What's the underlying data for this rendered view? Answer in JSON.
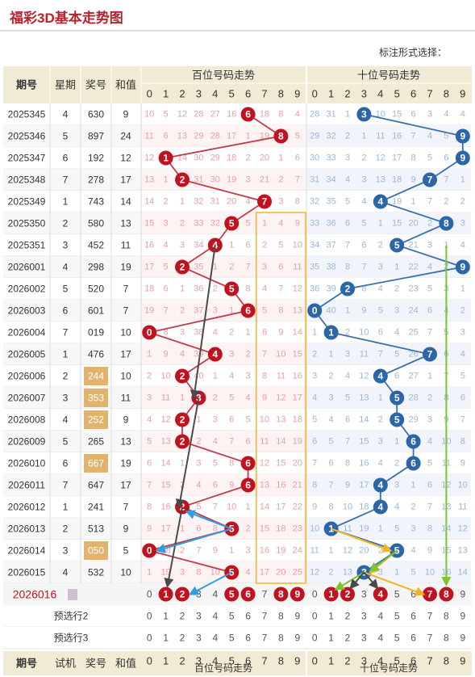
{
  "title": "福彩3D基本走势图",
  "mark_style_label": "标注形式选择：",
  "header": {
    "period": "期号",
    "weekday": "星期",
    "prize": "奖号",
    "sum": "和值",
    "hundreds_group": "百位号码走势",
    "tens_group": "十位号码走势",
    "digits": [
      "0",
      "1",
      "2",
      "3",
      "4",
      "5",
      "6",
      "7",
      "8",
      "9"
    ]
  },
  "footer_header": {
    "period": "期号",
    "trial": "试机",
    "prize": "奖号",
    "sum": "和值",
    "hundreds_group": "百位号码走势",
    "tens_group": "十位号码走势"
  },
  "rows": [
    {
      "period": "2025345",
      "weekday": "4",
      "prize": "630",
      "sum": "9",
      "prize_marked": false,
      "h": [
        "10",
        "5",
        "12",
        "28",
        "27",
        "16",
        "6",
        "18",
        "8",
        "4"
      ],
      "t": [
        "28",
        "31",
        "1",
        "3",
        "10",
        "15",
        "6",
        "3",
        "4",
        "4"
      ]
    },
    {
      "period": "2025346",
      "weekday": "5",
      "prize": "897",
      "sum": "24",
      "prize_marked": false,
      "h": [
        "11",
        "6",
        "13",
        "29",
        "28",
        "17",
        "1",
        "19",
        "8",
        "5"
      ],
      "t": [
        "29",
        "32",
        "2",
        "1",
        "11",
        "16",
        "7",
        "4",
        "5",
        "9"
      ]
    },
    {
      "period": "2025347",
      "weekday": "6",
      "prize": "192",
      "sum": "12",
      "prize_marked": false,
      "h": [
        "12",
        "1",
        "14",
        "30",
        "29",
        "18",
        "2",
        "20",
        "1",
        "6"
      ],
      "t": [
        "30",
        "33",
        "3",
        "2",
        "12",
        "17",
        "8",
        "5",
        "6",
        "9"
      ]
    },
    {
      "period": "2025348",
      "weekday": "7",
      "prize": "278",
      "sum": "17",
      "prize_marked": false,
      "h": [
        "13",
        "1",
        "2",
        "31",
        "30",
        "19",
        "3",
        "21",
        "2",
        "7"
      ],
      "t": [
        "31",
        "34",
        "4",
        "3",
        "13",
        "18",
        "9",
        "7",
        "7",
        "1"
      ]
    },
    {
      "period": "2025349",
      "weekday": "1",
      "prize": "743",
      "sum": "14",
      "prize_marked": false,
      "h": [
        "14",
        "2",
        "1",
        "32",
        "31",
        "20",
        "4",
        "7",
        "3",
        "8"
      ],
      "t": [
        "32",
        "35",
        "5",
        "4",
        "4",
        "19",
        "1",
        "7",
        "2",
        "2"
      ]
    },
    {
      "period": "2025350",
      "weekday": "2",
      "prize": "580",
      "sum": "13",
      "prize_marked": false,
      "h": [
        "15",
        "3",
        "2",
        "33",
        "32",
        "5",
        "5",
        "1",
        "4",
        "9"
      ],
      "t": [
        "33",
        "36",
        "6",
        "5",
        "1",
        "15",
        "20",
        "2",
        "8",
        "3"
      ]
    },
    {
      "period": "2025351",
      "weekday": "3",
      "prize": "452",
      "sum": "11",
      "prize_marked": false,
      "h": [
        "16",
        "4",
        "3",
        "34",
        "4",
        "1",
        "6",
        "2",
        "5",
        "10"
      ],
      "t": [
        "34",
        "37",
        "7",
        "6",
        "2",
        "5",
        "21",
        "3",
        "1",
        "4"
      ]
    },
    {
      "period": "2026001",
      "weekday": "4",
      "prize": "298",
      "sum": "19",
      "prize_marked": false,
      "h": [
        "17",
        "5",
        "2",
        "35",
        "1",
        "2",
        "7",
        "3",
        "6",
        "11"
      ],
      "t": [
        "35",
        "38",
        "8",
        "7",
        "3",
        "1",
        "22",
        "4",
        "2",
        "9"
      ]
    },
    {
      "period": "2026002",
      "weekday": "5",
      "prize": "520",
      "sum": "7",
      "prize_marked": false,
      "h": [
        "18",
        "6",
        "1",
        "36",
        "2",
        "5",
        "8",
        "4",
        "7",
        "12"
      ],
      "t": [
        "36",
        "39",
        "2",
        "8",
        "4",
        "2",
        "23",
        "5",
        "3",
        "1"
      ]
    },
    {
      "period": "2026003",
      "weekday": "6",
      "prize": "601",
      "sum": "7",
      "prize_marked": false,
      "h": [
        "19",
        "7",
        "2",
        "37",
        "3",
        "1",
        "6",
        "5",
        "8",
        "13"
      ],
      "t": [
        "0",
        "40",
        "1",
        "9",
        "5",
        "3",
        "24",
        "6",
        "4",
        "2"
      ]
    },
    {
      "period": "2026004",
      "weekday": "7",
      "prize": "019",
      "sum": "10",
      "prize_marked": false,
      "h": [
        "0",
        "8",
        "3",
        "38",
        "4",
        "2",
        "1",
        "6",
        "9",
        "14"
      ],
      "t": [
        "1",
        "1",
        "2",
        "10",
        "6",
        "4",
        "25",
        "7",
        "5",
        "3"
      ]
    },
    {
      "period": "2026005",
      "weekday": "1",
      "prize": "476",
      "sum": "17",
      "prize_marked": false,
      "h": [
        "1",
        "9",
        "4",
        "39",
        "4",
        "3",
        "2",
        "7",
        "10",
        "15"
      ],
      "t": [
        "2",
        "1",
        "3",
        "11",
        "7",
        "5",
        "26",
        "7",
        "6",
        "4"
      ]
    },
    {
      "period": "2026006",
      "weekday": "2",
      "prize": "244",
      "sum": "10",
      "prize_marked": true,
      "h": [
        "2",
        "10",
        "2",
        "40",
        "1",
        "4",
        "3",
        "8",
        "11",
        "16"
      ],
      "t": [
        "3",
        "2",
        "4",
        "12",
        "4",
        "6",
        "27",
        "1",
        "7",
        "5"
      ]
    },
    {
      "period": "2026007",
      "weekday": "3",
      "prize": "353",
      "sum": "11",
      "prize_marked": true,
      "h": [
        "3",
        "11",
        "1",
        "3",
        "2",
        "5",
        "4",
        "9",
        "12",
        "17"
      ],
      "t": [
        "4",
        "3",
        "5",
        "13",
        "1",
        "5",
        "28",
        "2",
        "8",
        "6"
      ]
    },
    {
      "period": "2026008",
      "weekday": "4",
      "prize": "252",
      "sum": "9",
      "prize_marked": true,
      "h": [
        "4",
        "12",
        "2",
        "1",
        "3",
        "6",
        "5",
        "10",
        "13",
        "18"
      ],
      "t": [
        "5",
        "4",
        "6",
        "14",
        "2",
        "5",
        "29",
        "3",
        "9",
        "7"
      ]
    },
    {
      "period": "2026009",
      "weekday": "5",
      "prize": "265",
      "sum": "13",
      "prize_marked": false,
      "h": [
        "5",
        "13",
        "2",
        "2",
        "4",
        "7",
        "6",
        "11",
        "14",
        "19"
      ],
      "t": [
        "6",
        "5",
        "7",
        "15",
        "3",
        "1",
        "6",
        "4",
        "10",
        "8"
      ]
    },
    {
      "period": "2026010",
      "weekday": "6",
      "prize": "667",
      "sum": "19",
      "prize_marked": true,
      "h": [
        "6",
        "14",
        "1",
        "3",
        "5",
        "8",
        "6",
        "12",
        "15",
        "20"
      ],
      "t": [
        "7",
        "6",
        "8",
        "16",
        "4",
        "2",
        "6",
        "5",
        "11",
        "9"
      ]
    },
    {
      "period": "2026011",
      "weekday": "7",
      "prize": "647",
      "sum": "17",
      "prize_marked": false,
      "h": [
        "7",
        "15",
        "2",
        "4",
        "6",
        "9",
        "6",
        "13",
        "16",
        "21"
      ],
      "t": [
        "8",
        "7",
        "9",
        "17",
        "4",
        "3",
        "1",
        "6",
        "12",
        "10"
      ]
    },
    {
      "period": "2026012",
      "weekday": "1",
      "prize": "241",
      "sum": "7",
      "prize_marked": false,
      "h": [
        "8",
        "16",
        "2",
        "5",
        "7",
        "10",
        "1",
        "14",
        "17",
        "22"
      ],
      "t": [
        "9",
        "8",
        "10",
        "18",
        "4",
        "4",
        "2",
        "7",
        "13",
        "11"
      ]
    },
    {
      "period": "2026013",
      "weekday": "2",
      "prize": "513",
      "sum": "9",
      "prize_marked": false,
      "h": [
        "9",
        "17",
        "1",
        "6",
        "8",
        "5",
        "2",
        "15",
        "18",
        "23"
      ],
      "t": [
        "10",
        "1",
        "11",
        "19",
        "1",
        "5",
        "3",
        "8",
        "14",
        "12"
      ]
    },
    {
      "period": "2026014",
      "weekday": "3",
      "prize": "050",
      "sum": "5",
      "prize_marked": true,
      "h": [
        "0",
        "18",
        "2",
        "7",
        "9",
        "1",
        "3",
        "16",
        "19",
        "24"
      ],
      "t": [
        "11",
        "1",
        "12",
        "20",
        "2",
        "5",
        "4",
        "9",
        "15",
        "13"
      ]
    },
    {
      "period": "2026015",
      "weekday": "4",
      "prize": "532",
      "sum": "10",
      "prize_marked": false,
      "h": [
        "1",
        "19",
        "3",
        "8",
        "10",
        "5",
        "4",
        "17",
        "20",
        "25"
      ],
      "t": [
        "12",
        "2",
        "13",
        "3",
        "3",
        "1",
        "5",
        "10",
        "16",
        "14"
      ]
    }
  ],
  "pick_row": {
    "period": "2026016",
    "h_selected": [
      1,
      2,
      5,
      6,
      8,
      9
    ],
    "t_selected": [
      1,
      2,
      4,
      7,
      8
    ]
  },
  "preselect_rows": [
    {
      "label": "预选行2"
    },
    {
      "label": "预选行3"
    }
  ],
  "colors": {
    "hundreds_ball": "#c1131f",
    "tens_ball": "#2b66a8",
    "hundreds_line": "#c33b48",
    "tens_line": "#3a6fb0",
    "prize_highlight": "#e0b36e",
    "header_bg": "#f1ead4",
    "period_red": "#c1131f",
    "box_orange": "#f3b428",
    "arrow_dark": "#4a4a4a",
    "arrow_light_blue": "#2f9fe3",
    "arrow_orange": "#f3b428",
    "arrow_green": "#7cc52d"
  }
}
